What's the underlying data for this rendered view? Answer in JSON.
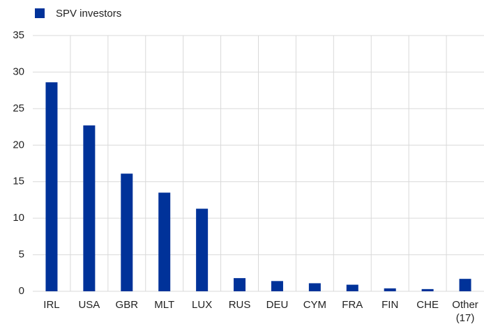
{
  "chart_data": {
    "type": "bar",
    "legend": "SPV investors",
    "categories": [
      "IRL",
      "USA",
      "GBR",
      "MLT",
      "LUX",
      "RUS",
      "DEU",
      "CYM",
      "FRA",
      "FIN",
      "CHE",
      "Other (17)"
    ],
    "values": [
      28.6,
      22.7,
      16.1,
      13.5,
      11.3,
      1.8,
      1.4,
      1.1,
      0.9,
      0.4,
      0.3,
      1.7
    ],
    "color": "#003299",
    "ylim": [
      0,
      35
    ],
    "yticks": [
      0,
      5,
      10,
      15,
      20,
      25,
      30,
      35
    ],
    "grid": true
  }
}
